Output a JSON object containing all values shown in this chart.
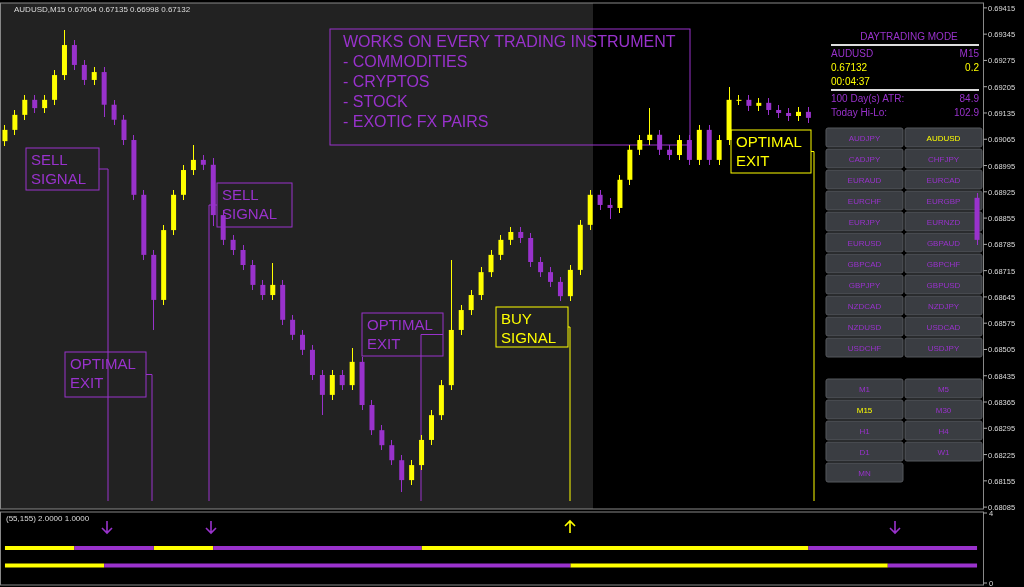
{
  "chart_data": [
    {
      "type": "candlestick",
      "title": "AUDUSD,M15 0.67004 0.67135 0.66998 0.67132",
      "categories": [
        null,
        null,
        null,
        null,
        null,
        null,
        null,
        null,
        null,
        null,
        null,
        null,
        null,
        null,
        null,
        null,
        null,
        null,
        null,
        null,
        null,
        null,
        null,
        null,
        null,
        null,
        null,
        null,
        null,
        null,
        null,
        null,
        null,
        null,
        null,
        null,
        null,
        null,
        null,
        null,
        null,
        null,
        null,
        null,
        null,
        null,
        null,
        null,
        null,
        null,
        null,
        null,
        null,
        null,
        null,
        null,
        null,
        null,
        null,
        null,
        null,
        null,
        null,
        null,
        null,
        null,
        null,
        null,
        null,
        null,
        null,
        null,
        null,
        null,
        null,
        null,
        null,
        null,
        null,
        null,
        null,
        null,
        null,
        null,
        null,
        null,
        null,
        null,
        null,
        null,
        null,
        null,
        null,
        null,
        null,
        null,
        null,
        null,
        null
      ],
      "ohlc": [
        [
          0.6906,
          0.69103,
          0.69047,
          0.6909
        ],
        [
          0.6909,
          0.69143,
          0.69077,
          0.6913
        ],
        [
          0.6913,
          0.69183,
          0.69117,
          0.6917
        ],
        [
          0.6917,
          0.69183,
          0.69135,
          0.69148
        ],
        [
          0.69148,
          0.69183,
          0.69135,
          0.6917
        ],
        [
          0.6917,
          0.69249,
          0.69157,
          0.69236
        ],
        [
          0.69236,
          0.69356,
          0.69223,
          0.69316
        ],
        [
          0.69316,
          0.69329,
          0.6925,
          0.69263
        ],
        [
          0.69263,
          0.69276,
          0.6921,
          0.69223
        ],
        [
          0.69223,
          0.69257,
          0.6921,
          0.69244
        ],
        [
          0.69244,
          0.69257,
          0.69125,
          0.69157
        ],
        [
          0.69157,
          0.6917,
          0.69104,
          0.69117
        ],
        [
          0.69117,
          0.6913,
          0.6905,
          0.69063
        ],
        [
          0.69063,
          0.69076,
          0.68904,
          0.68917
        ],
        [
          0.68917,
          0.6893,
          0.68744,
          0.68757
        ],
        [
          0.68757,
          0.6877,
          0.68557,
          0.68637
        ],
        [
          0.68637,
          0.68836,
          0.68624,
          0.68823
        ],
        [
          0.68823,
          0.6893,
          0.6881,
          0.68917
        ],
        [
          0.68917,
          0.68996,
          0.68904,
          0.68983
        ],
        [
          0.68983,
          0.6905,
          0.6897,
          0.6901
        ],
        [
          0.6901,
          0.69023,
          0.68984,
          0.68997
        ],
        [
          0.68997,
          0.69015,
          0.68835,
          0.68863
        ],
        [
          0.68863,
          0.68876,
          0.68784,
          0.68797
        ],
        [
          0.68797,
          0.6881,
          0.68757,
          0.6877
        ],
        [
          0.6877,
          0.68783,
          0.68717,
          0.6873
        ],
        [
          0.6873,
          0.68743,
          0.68664,
          0.68677
        ],
        [
          0.68677,
          0.6869,
          0.68637,
          0.6865
        ],
        [
          0.6865,
          0.68735,
          0.68637,
          0.68677
        ],
        [
          0.68677,
          0.6869,
          0.68571,
          0.68584
        ],
        [
          0.68584,
          0.68597,
          0.68531,
          0.68544
        ],
        [
          0.68544,
          0.68557,
          0.68491,
          0.68504
        ],
        [
          0.68504,
          0.68517,
          0.68424,
          0.68437
        ],
        [
          0.68437,
          0.6845,
          0.6833,
          0.68384
        ],
        [
          0.68384,
          0.6845,
          0.68371,
          0.68437
        ],
        [
          0.68437,
          0.6845,
          0.68397,
          0.6841
        ],
        [
          0.6841,
          0.68509,
          0.68397,
          0.68472
        ],
        [
          0.68472,
          0.68485,
          0.68344,
          0.68357
        ],
        [
          0.68357,
          0.6837,
          0.68277,
          0.6829
        ],
        [
          0.6829,
          0.68303,
          0.68237,
          0.6825
        ],
        [
          0.6825,
          0.68263,
          0.68197,
          0.6821
        ],
        [
          0.6821,
          0.68223,
          0.68125,
          0.68157
        ],
        [
          0.68157,
          0.6821,
          0.68144,
          0.68197
        ],
        [
          0.68197,
          0.68277,
          0.68184,
          0.68264
        ],
        [
          0.68264,
          0.68343,
          0.68251,
          0.6833
        ],
        [
          0.6833,
          0.68423,
          0.68317,
          0.6841
        ],
        [
          0.6841,
          0.68743,
          0.68397,
          0.68557
        ],
        [
          0.68557,
          0.68623,
          0.68544,
          0.6861
        ],
        [
          0.6861,
          0.68663,
          0.68597,
          0.6865
        ],
        [
          0.6865,
          0.68724,
          0.68637,
          0.68711
        ],
        [
          0.68711,
          0.6877,
          0.68698,
          0.68757
        ],
        [
          0.68757,
          0.6881,
          0.68744,
          0.68797
        ],
        [
          0.68797,
          0.68831,
          0.68784,
          0.68818
        ],
        [
          0.68818,
          0.68831,
          0.68789,
          0.68802
        ],
        [
          0.68802,
          0.68815,
          0.68725,
          0.68738
        ],
        [
          0.68738,
          0.68751,
          0.68698,
          0.68711
        ],
        [
          0.68711,
          0.68724,
          0.68672,
          0.68685
        ],
        [
          0.68685,
          0.68698,
          0.68634,
          0.68647
        ],
        [
          0.68647,
          0.6873,
          0.68634,
          0.68717
        ],
        [
          0.68717,
          0.6885,
          0.68704,
          0.68837
        ],
        [
          0.68837,
          0.6893,
          0.68824,
          0.68917
        ],
        [
          0.68917,
          0.6893,
          0.68877,
          0.6889
        ],
        [
          0.6889,
          0.68908,
          0.68852,
          0.68882
        ],
        [
          0.68882,
          0.6897,
          0.68869,
          0.68957
        ],
        [
          0.68957,
          0.6905,
          0.68944,
          0.69037
        ],
        [
          0.69037,
          0.69076,
          0.69024,
          0.69063
        ],
        [
          0.69063,
          0.69149,
          0.6905,
          0.69077
        ],
        [
          0.69077,
          0.6909,
          0.69024,
          0.69037
        ],
        [
          0.69037,
          0.6905,
          0.6901,
          0.69023
        ],
        [
          0.69023,
          0.69076,
          0.6901,
          0.69063
        ],
        [
          0.69063,
          0.69076,
          0.68997,
          0.6901
        ],
        [
          0.6901,
          0.69103,
          0.68997,
          0.6909
        ],
        [
          0.6909,
          0.69103,
          0.68997,
          0.6901
        ],
        [
          0.6901,
          0.69076,
          0.68997,
          0.69063
        ],
        [
          0.69063,
          0.69205,
          0.6905,
          0.6917
        ],
        [
          0.6917,
          0.69183,
          0.69157,
          0.6917
        ],
        [
          0.6917,
          0.69183,
          0.69141,
          0.69154
        ],
        [
          0.69154,
          0.69175,
          0.69141,
          0.69162
        ],
        [
          0.69162,
          0.69175,
          0.6913,
          0.69143
        ],
        [
          0.69143,
          0.69156,
          0.69122,
          0.69135
        ],
        [
          0.69135,
          0.69148,
          0.69114,
          0.69127
        ],
        [
          0.69127,
          0.69151,
          0.69114,
          0.69138
        ],
        [
          0.69138,
          0.69151,
          0.69109,
          0.69122
        ],
        null,
        null,
        null,
        null,
        null,
        null,
        null,
        null,
        null,
        null,
        null,
        null,
        null,
        null,
        null,
        null,
        [
          0.68909,
          0.68922,
          0.68784,
          0.68797
        ]
      ],
      "colors": [
        "#ffff00",
        "#ffff00",
        "#ffff00",
        "#9932cc",
        "#ffff00",
        "#ffff00",
        "#ffff00",
        "#9932cc",
        "#9932cc",
        "#ffff00",
        "#9932cc",
        "#9932cc",
        "#9932cc",
        "#9932cc",
        "#9932cc",
        "#9932cc",
        "#ffff00",
        "#ffff00",
        "#ffff00",
        "#ffff00",
        "#9932cc",
        "#9932cc",
        "#9932cc",
        "#9932cc",
        "#9932cc",
        "#9932cc",
        "#9932cc",
        "#ffff00",
        "#9932cc",
        "#9932cc",
        "#9932cc",
        "#9932cc",
        "#9932cc",
        "#ffff00",
        "#9932cc",
        "#ffff00",
        "#9932cc",
        "#9932cc",
        "#9932cc",
        "#9932cc",
        "#9932cc",
        "#ffff00",
        "#ffff00",
        "#ffff00",
        "#ffff00",
        "#ffff00",
        "#ffff00",
        "#ffff00",
        "#ffff00",
        "#ffff00",
        "#ffff00",
        "#ffff00",
        "#9932cc",
        "#9932cc",
        "#9932cc",
        "#9932cc",
        "#9932cc",
        "#ffff00",
        "#ffff00",
        "#ffff00",
        "#9932cc",
        "#9932cc",
        "#ffff00",
        "#ffff00",
        "#ffff00",
        "#ffff00",
        "#9932cc",
        "#9932cc",
        "#ffff00",
        "#9932cc",
        "#ffff00",
        "#9932cc",
        "#ffff00",
        "#ffff00",
        "#ffff00",
        "#9932cc",
        "#ffff00",
        "#9932cc",
        "#9932cc",
        "#9932cc",
        "#ffff00",
        "#9932cc",
        null,
        null,
        null,
        null,
        null,
        null,
        null,
        null,
        null,
        null,
        null,
        null,
        null,
        null,
        null,
        null,
        "#9932cc"
      ],
      "ylim": [
        0.6808,
        0.69428
      ],
      "yticks": [
        0.69415,
        0.69345,
        0.69275,
        0.69205,
        0.69135,
        0.69065,
        0.68995,
        0.68925,
        0.68855,
        0.68785,
        0.68715,
        0.68645,
        0.68575,
        0.68505,
        0.68435,
        0.68365,
        0.68295,
        0.68225,
        0.68155,
        0.68085
      ],
      "annotations": [
        "SELL\nSIGNAL",
        "OPTIMAL\nEXIT",
        "SELL\nSIGNAL",
        "OPTIMAL\nEXIT",
        "BUY\nSIGNAL",
        "OPTIMAL\nEXIT",
        "WORKS ON EVERY TRADING INSTRUMENT\n- COMMODITIES\n- CRYPTOS\n- STOCK\n- EXOTIC FX PAIRS",
        "DAYTRADING MODE",
        "AUDUSD",
        "M15",
        "0.67132",
        "0.2",
        "00:04:37",
        "100 Day(s) ATR:",
        "84.9",
        "Today Hi-Lo:",
        "102.9",
        "AUDJPY",
        "AUDUSD",
        "CADJPY",
        "CHFJPY",
        "EURAUD",
        "EURCAD",
        "EURCHF",
        "EURGBP",
        "EURJPY",
        "EURNZD",
        "EURUSD",
        "GBPAUD",
        "GBPCAD",
        "GBPCHF",
        "GBPJPY",
        "GBPUSD",
        "NZDCAD",
        "NZDJPY",
        "NZDUSD",
        "USDCAD",
        "USDCHF",
        "USDJPY",
        "M1",
        "M5",
        "M15",
        "M30",
        "H1",
        "H4",
        "D1",
        "W1",
        "MN"
      ]
    },
    {
      "type": "line",
      "title": "(55,155) 2.0000 1.0000",
      "ylim": [
        0,
        4
      ],
      "yticks": [
        4,
        0
      ],
      "categories": [
        null,
        null,
        null,
        null,
        null,
        null,
        null,
        null,
        null,
        null,
        null,
        null,
        null,
        null,
        null,
        null,
        null,
        null,
        null,
        null,
        null,
        null,
        null,
        null,
        null,
        null,
        null,
        null,
        null,
        null,
        null,
        null,
        null,
        null,
        null,
        null,
        null,
        null,
        null,
        null,
        null,
        null,
        null,
        null,
        null,
        null,
        null,
        null,
        null,
        null,
        null,
        null,
        null,
        null,
        null,
        null,
        null,
        null,
        null,
        null,
        null,
        null,
        null,
        null,
        null,
        null,
        null,
        null,
        null,
        null,
        null,
        null,
        null,
        null,
        null,
        null,
        null,
        null,
        null,
        null,
        null,
        null,
        null,
        null,
        null,
        null,
        null,
        null,
        null,
        null,
        null,
        null,
        null,
        null,
        null,
        null,
        null,
        null,
        null
      ],
      "series": [
        {
          "color": "#ffff00",
          "values": [
            2,
            2,
            2,
            2,
            2,
            2,
            2,
            2,
            null,
            null,
            null,
            null,
            null,
            null,
            null,
            2,
            2,
            2,
            2,
            2,
            2,
            2,
            null,
            null,
            null,
            null,
            null,
            null,
            null,
            null,
            null,
            null,
            null,
            null,
            null,
            null,
            null,
            null,
            null,
            null,
            null,
            null,
            2,
            2,
            2,
            2,
            2,
            2,
            2,
            2,
            2,
            2,
            2,
            2,
            2,
            2,
            2,
            2,
            2,
            2,
            2,
            2,
            2,
            2,
            2,
            2,
            2,
            2,
            2,
            2,
            2,
            2,
            2,
            2,
            2,
            2,
            2,
            2,
            2,
            2,
            2,
            2,
            null,
            null,
            null,
            null,
            null,
            null,
            null,
            null,
            null,
            null,
            null,
            null,
            null,
            null,
            null,
            null,
            null
          ]
        },
        {
          "color": "#9932cc",
          "values": [
            null,
            null,
            null,
            null,
            null,
            null,
            null,
            2,
            2,
            2,
            2,
            2,
            2,
            2,
            2,
            2,
            null,
            null,
            null,
            null,
            null,
            2,
            2,
            2,
            2,
            2,
            2,
            2,
            2,
            2,
            2,
            2,
            2,
            2,
            2,
            2,
            2,
            2,
            2,
            2,
            2,
            2,
            2,
            null,
            null,
            null,
            null,
            null,
            null,
            null,
            null,
            null,
            null,
            null,
            null,
            null,
            null,
            null,
            null,
            null,
            null,
            null,
            null,
            null,
            null,
            null,
            null,
            null,
            null,
            null,
            null,
            null,
            null,
            null,
            null,
            null,
            null,
            null,
            null,
            null,
            null,
            2,
            2,
            2,
            2,
            2,
            2,
            2,
            2,
            2,
            2,
            2,
            2,
            2,
            2,
            2,
            2,
            2,
            2
          ]
        },
        {
          "color": "#ffff00",
          "values": [
            1,
            1,
            1,
            1,
            1,
            1,
            1,
            1,
            1,
            1,
            1,
            null,
            null,
            null,
            null,
            null,
            null,
            null,
            null,
            null,
            null,
            null,
            null,
            null,
            null,
            null,
            null,
            null,
            null,
            null,
            null,
            null,
            null,
            null,
            null,
            null,
            null,
            null,
            null,
            null,
            null,
            null,
            null,
            null,
            null,
            null,
            null,
            null,
            null,
            null,
            null,
            null,
            null,
            null,
            null,
            null,
            null,
            1,
            1,
            1,
            1,
            1,
            1,
            1,
            1,
            1,
            1,
            1,
            1,
            1,
            1,
            1,
            1,
            1,
            1,
            1,
            1,
            1,
            1,
            1,
            1,
            1,
            1,
            1,
            1,
            1,
            1,
            1,
            1,
            1,
            null,
            null,
            null,
            null,
            null,
            null,
            null,
            null,
            null
          ]
        },
        {
          "color": "#9932cc",
          "values": [
            null,
            null,
            null,
            null,
            null,
            null,
            null,
            null,
            null,
            null,
            1,
            1,
            1,
            1,
            1,
            1,
            1,
            1,
            1,
            1,
            1,
            1,
            1,
            1,
            1,
            1,
            1,
            1,
            1,
            1,
            1,
            1,
            1,
            1,
            1,
            1,
            1,
            1,
            1,
            1,
            1,
            1,
            1,
            1,
            1,
            1,
            1,
            1,
            1,
            1,
            1,
            1,
            1,
            1,
            1,
            1,
            1,
            1,
            null,
            null,
            null,
            null,
            null,
            null,
            null,
            null,
            null,
            null,
            null,
            null,
            null,
            null,
            null,
            null,
            null,
            null,
            null,
            null,
            null,
            null,
            null,
            null,
            null,
            null,
            null,
            null,
            null,
            null,
            null,
            1,
            1,
            1,
            1,
            1,
            1,
            1,
            1,
            1,
            1
          ]
        }
      ]
    }
  ]
}
